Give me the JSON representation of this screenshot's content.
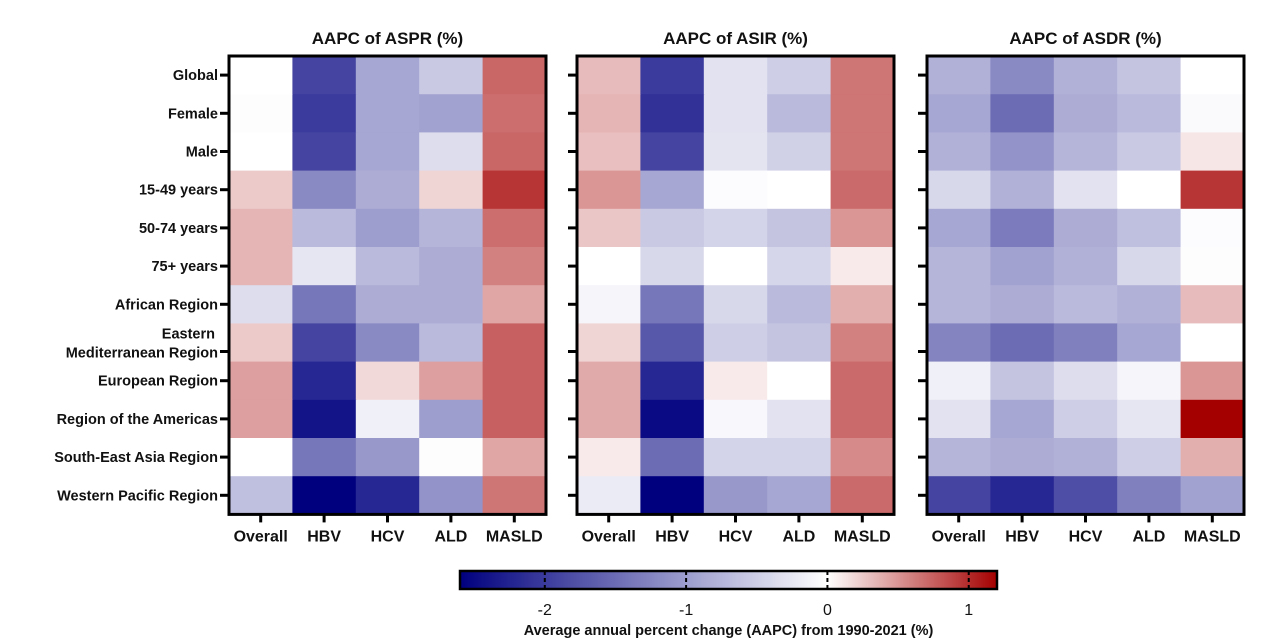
{
  "chart_data": {
    "type": "heatmap",
    "row_labels": [
      [
        "Global"
      ],
      [
        "Female"
      ],
      [
        "Male"
      ],
      [
        "15-49 years"
      ],
      [
        "50-74 years"
      ],
      [
        "75+ years"
      ],
      [
        "African Region"
      ],
      [
        "Eastern",
        "Mediterranean Region"
      ],
      [
        "European Region"
      ],
      [
        "Region of the Americas"
      ],
      [
        "South-East Asia Region"
      ],
      [
        "Western Pacific Region"
      ]
    ],
    "columns": [
      "Overall",
      "HBV",
      "HCV",
      "ALD",
      "MASLD"
    ],
    "panels": [
      {
        "title": "AAPC of ASPR (%)",
        "show_row_labels": true,
        "values": [
          [
            0.0,
            -1.9,
            -0.9,
            -0.55,
            0.72
          ],
          [
            0.01,
            -2.0,
            -0.9,
            -0.95,
            0.68
          ],
          [
            0.0,
            -1.9,
            -0.9,
            -0.35,
            0.72
          ],
          [
            0.25,
            -1.2,
            -0.85,
            0.2,
            0.95
          ],
          [
            0.35,
            -0.7,
            -1.0,
            -0.75,
            0.68
          ],
          [
            0.35,
            -0.25,
            -0.7,
            -0.85,
            0.6
          ],
          [
            -0.35,
            -1.4,
            -0.85,
            -0.85,
            0.42
          ],
          [
            0.25,
            -1.9,
            -1.2,
            -0.7,
            0.75
          ],
          [
            0.45,
            -2.2,
            0.18,
            0.45,
            0.75
          ],
          [
            0.45,
            -2.4,
            -0.15,
            -1.0,
            0.75
          ],
          [
            0.0,
            -1.4,
            -1.05,
            0.01,
            0.42
          ],
          [
            -0.65,
            -2.6,
            -2.2,
            -1.1,
            0.65
          ]
        ]
      },
      {
        "title": "AAPC of ASIR (%)",
        "show_row_labels": false,
        "values": [
          [
            0.32,
            -2.0,
            -0.3,
            -0.5,
            0.65
          ],
          [
            0.35,
            -2.1,
            -0.3,
            -0.7,
            0.65
          ],
          [
            0.3,
            -1.9,
            -0.28,
            -0.48,
            0.65
          ],
          [
            0.5,
            -0.9,
            -0.03,
            0.0,
            0.7
          ],
          [
            0.27,
            -0.55,
            -0.45,
            -0.6,
            0.5
          ],
          [
            0.0,
            -0.4,
            0.0,
            -0.42,
            0.1
          ],
          [
            -0.1,
            -1.4,
            -0.4,
            -0.7,
            0.38
          ],
          [
            0.2,
            -1.7,
            -0.5,
            -0.6,
            0.6
          ],
          [
            0.4,
            -2.2,
            0.1,
            0.0,
            0.7
          ],
          [
            0.4,
            -2.5,
            -0.07,
            -0.3,
            0.7
          ],
          [
            0.1,
            -1.5,
            -0.45,
            -0.45,
            0.55
          ],
          [
            -0.2,
            -2.6,
            -1.05,
            -0.9,
            0.7
          ]
        ]
      },
      {
        "title": "AAPC of ASDR (%)",
        "show_row_labels": false,
        "values": [
          [
            -0.8,
            -1.2,
            -0.8,
            -0.6,
            0.0
          ],
          [
            -0.9,
            -1.5,
            -0.85,
            -0.7,
            -0.05
          ],
          [
            -0.8,
            -1.1,
            -0.75,
            -0.55,
            0.12
          ],
          [
            -0.4,
            -0.8,
            -0.3,
            0.0,
            0.95
          ],
          [
            -0.9,
            -1.35,
            -0.85,
            -0.65,
            -0.03
          ],
          [
            -0.75,
            -0.95,
            -0.8,
            -0.4,
            0.01
          ],
          [
            -0.75,
            -0.85,
            -0.7,
            -0.8,
            0.32
          ],
          [
            -1.25,
            -1.5,
            -1.3,
            -0.9,
            0.0
          ],
          [
            -0.15,
            -0.6,
            -0.35,
            -0.1,
            0.5
          ],
          [
            -0.3,
            -0.9,
            -0.5,
            -0.25,
            1.2
          ],
          [
            -0.75,
            -0.85,
            -0.8,
            -0.5,
            0.38
          ],
          [
            -1.9,
            -2.2,
            -1.8,
            -1.3,
            -0.95
          ]
        ]
      }
    ],
    "colorbar": {
      "range": [
        -2.6,
        1.2
      ],
      "ticks": [
        -2,
        -1,
        0,
        1
      ],
      "tick_labels": [
        "-2",
        "-1",
        "0",
        "1"
      ],
      "colors": {
        "low": "#00007f",
        "mid": "#ffffff",
        "high": "#a50000"
      },
      "title": "Average annual percent change (AAPC) from 1990-2021 (%)",
      "placement": "bottom-center"
    },
    "grid": false,
    "legend": "colorbar-bottom"
  }
}
